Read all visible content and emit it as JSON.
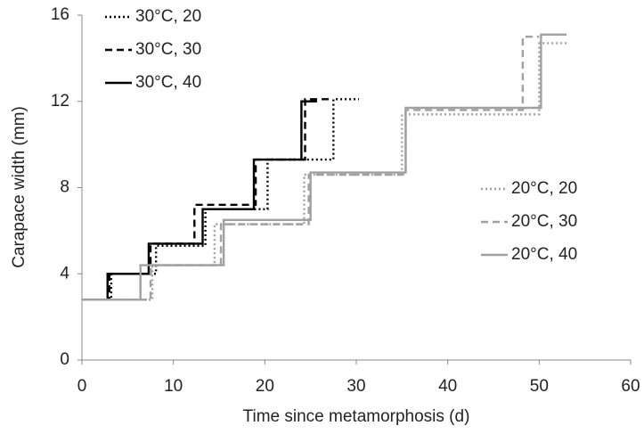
{
  "chart_data": {
    "type": "step",
    "x_label": "Time since metamorphosis (d)",
    "y_label": "Carapace width (mm)",
    "xlim": [
      0,
      60
    ],
    "xticks": [
      0,
      10,
      20,
      30,
      40,
      50,
      60
    ],
    "ylim": [
      0,
      16
    ],
    "yticks": [
      0,
      4,
      8,
      12,
      16
    ],
    "grid": false,
    "series": [
      {
        "name": "30°C, 20",
        "color": "#000000",
        "dash": "dotted",
        "x": [
          0,
          3.2,
          8.1,
          13.5,
          20.3,
          27.5,
          30.3
        ],
        "values": [
          2.8,
          4.0,
          5.3,
          7.0,
          9.3,
          12.1,
          12.1
        ]
      },
      {
        "name": "30°C, 30",
        "color": "#000000",
        "dash": "dashed",
        "x": [
          0,
          3.0,
          7.5,
          12.3,
          19.0,
          24.4,
          27.2
        ],
        "values": [
          2.8,
          4.0,
          5.4,
          7.2,
          9.3,
          12.1,
          12.1
        ]
      },
      {
        "name": "30°C, 40",
        "color": "#000000",
        "dash": "solid",
        "x": [
          0,
          2.8,
          7.3,
          13.2,
          18.8,
          24.0,
          25.7
        ],
        "values": [
          2.8,
          4.0,
          5.4,
          7.0,
          9.3,
          12.0,
          12.0
        ]
      },
      {
        "name": "20°C, 20",
        "color": "#a0a0a0",
        "dash": "dotted",
        "x": [
          0,
          7.7,
          14.5,
          24.3,
          35.0,
          50.0,
          53.0
        ],
        "values": [
          2.8,
          4.4,
          6.3,
          8.6,
          11.4,
          14.7,
          14.7
        ]
      },
      {
        "name": "20°C, 30",
        "color": "#a0a0a0",
        "dash": "dashed",
        "x": [
          0,
          7.5,
          15.2,
          24.8,
          35.4,
          48.2,
          50.0
        ],
        "values": [
          2.8,
          4.4,
          6.3,
          8.6,
          11.6,
          15.0,
          15.0
        ]
      },
      {
        "name": "20°C, 40",
        "color": "#a0a0a0",
        "dash": "solid",
        "x": [
          0,
          6.4,
          15.5,
          25.0,
          35.4,
          50.2,
          53.0
        ],
        "values": [
          2.8,
          4.4,
          6.5,
          8.7,
          11.7,
          15.1,
          15.1
        ]
      }
    ]
  }
}
